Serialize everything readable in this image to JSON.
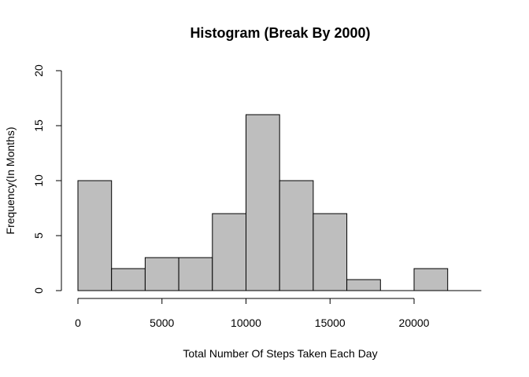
{
  "chart_data": {
    "type": "histogram",
    "title": "Histogram (Break By 2000)",
    "xlabel": "Total Number Of Steps Taken Each Day",
    "ylabel": "Frequency(In Months)",
    "bins": [
      {
        "start": 0,
        "end": 2000,
        "count": 10
      },
      {
        "start": 2000,
        "end": 4000,
        "count": 2
      },
      {
        "start": 4000,
        "end": 6000,
        "count": 3
      },
      {
        "start": 6000,
        "end": 8000,
        "count": 3
      },
      {
        "start": 8000,
        "end": 10000,
        "count": 7
      },
      {
        "start": 10000,
        "end": 12000,
        "count": 16
      },
      {
        "start": 12000,
        "end": 14000,
        "count": 10
      },
      {
        "start": 14000,
        "end": 16000,
        "count": 7
      },
      {
        "start": 16000,
        "end": 18000,
        "count": 1
      },
      {
        "start": 18000,
        "end": 20000,
        "count": 0
      },
      {
        "start": 20000,
        "end": 22000,
        "count": 2
      }
    ],
    "xlim": [
      0,
      24000
    ],
    "ylim": [
      0,
      20
    ],
    "x_ticks": [
      0,
      5000,
      10000,
      15000,
      20000
    ],
    "x_tick_labels": [
      "0",
      "5000",
      "10000",
      "15000",
      "20000"
    ],
    "y_ticks": [
      0,
      5,
      10,
      15,
      20
    ],
    "y_tick_labels": [
      "0",
      "5",
      "10",
      "15",
      "20"
    ],
    "bar_color": "#bebebe",
    "bar_edge_color": "#000000",
    "grid": false,
    "legend": "none"
  }
}
